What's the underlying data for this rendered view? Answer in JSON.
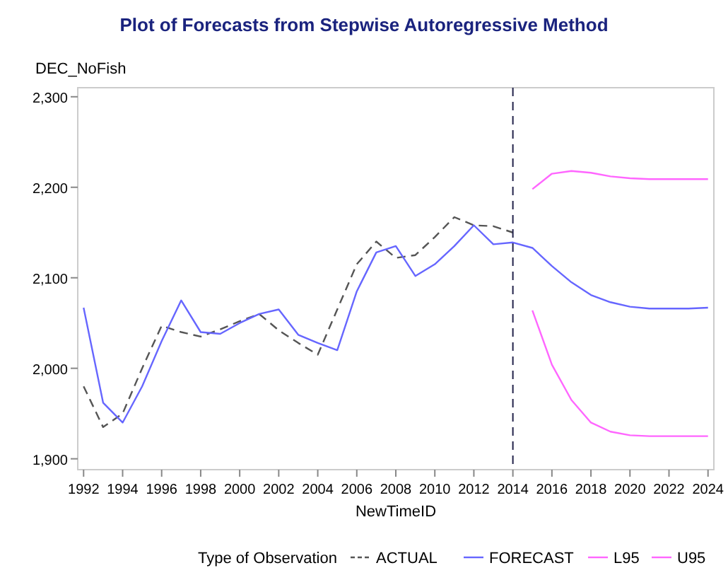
{
  "chart_data": {
    "type": "line",
    "title": "Plot of Forecasts from Stepwise Autoregressive Method",
    "xlabel": "NewTimeID",
    "ylabel": "DEC_NoFish",
    "legend_title": "Type of Observation",
    "legend": "bottom",
    "grid": false,
    "marker": "none",
    "xlim": [
      1991.7,
      2024.3
    ],
    "xticks": [
      1992,
      1994,
      1996,
      1998,
      2000,
      2002,
      2004,
      2006,
      2008,
      2010,
      2012,
      2014,
      2016,
      2018,
      2020,
      2022,
      2024
    ],
    "ylim": [
      1888,
      2310
    ],
    "yticks": [
      {
        "value": 1900,
        "label": "1,900"
      },
      {
        "value": 2000,
        "label": "2,000"
      },
      {
        "value": 2100,
        "label": "2,100"
      },
      {
        "value": 2200,
        "label": "2,200"
      },
      {
        "value": 2300,
        "label": "2,300"
      }
    ],
    "ref_lines": [
      {
        "axis": "x",
        "value": 2014,
        "color": "#22224a",
        "line_style": "dashed"
      }
    ],
    "series": [
      {
        "name": "ACTUAL",
        "color": "#555555",
        "line_style": "dashed",
        "x": [
          1992,
          1993,
          1994,
          1995,
          1996,
          1997,
          1998,
          1999,
          2000,
          2001,
          2002,
          2003,
          2004,
          2005,
          2006,
          2007,
          2008,
          2009,
          2010,
          2011,
          2012,
          2013,
          2014
        ],
        "values": [
          1980,
          1935,
          1950,
          2000,
          2047,
          2040,
          2035,
          2043,
          2052,
          2060,
          2042,
          2028,
          2015,
          2065,
          2115,
          2140,
          2122,
          2125,
          2145,
          2167,
          2158,
          2157,
          2150
        ]
      },
      {
        "name": "FORECAST",
        "color": "#6666ff",
        "line_style": "solid",
        "x": [
          1992,
          1993,
          1994,
          1995,
          1996,
          1997,
          1998,
          1999,
          2000,
          2001,
          2002,
          2003,
          2004,
          2005,
          2006,
          2007,
          2008,
          2009,
          2010,
          2011,
          2012,
          2013,
          2014,
          2015,
          2016,
          2017,
          2018,
          2019,
          2020,
          2021,
          2022,
          2023,
          2024
        ],
        "values": [
          2067,
          1962,
          1940,
          1980,
          2030,
          2075,
          2040,
          2038,
          2050,
          2060,
          2065,
          2037,
          2028,
          2020,
          2085,
          2128,
          2135,
          2102,
          2115,
          2135,
          2158,
          2137,
          2139,
          2133,
          2113,
          2095,
          2081,
          2073,
          2068,
          2066,
          2066,
          2066,
          2067
        ]
      },
      {
        "name": "L95",
        "color": "#ff66ff",
        "line_style": "solid",
        "x": [
          2015,
          2016,
          2017,
          2018,
          2019,
          2020,
          2021,
          2022,
          2023,
          2024
        ],
        "values": [
          2064,
          2004,
          1965,
          1940,
          1930,
          1926,
          1925,
          1925,
          1925,
          1925
        ]
      },
      {
        "name": "U95",
        "color": "#ff66ff",
        "line_style": "solid",
        "x": [
          2015,
          2016,
          2017,
          2018,
          2019,
          2020,
          2021,
          2022,
          2023,
          2024
        ],
        "values": [
          2198,
          2215,
          2218,
          2216,
          2212,
          2210,
          2209,
          2209,
          2209,
          2209
        ]
      }
    ]
  }
}
